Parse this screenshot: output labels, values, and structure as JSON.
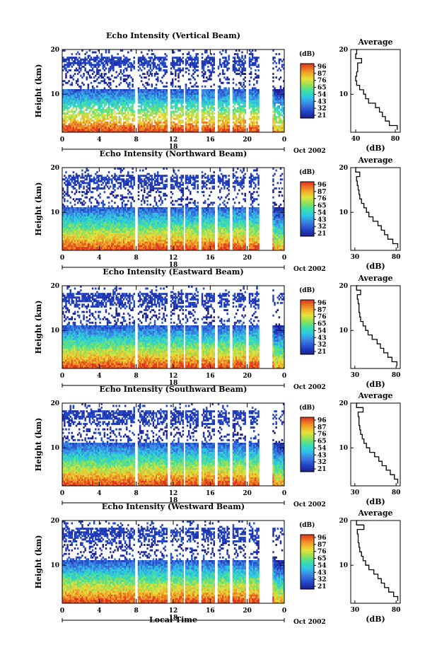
{
  "common": {
    "y_axis_label": "Height (km)",
    "x_axis_label": "Local Time",
    "date_label": "Oct 2002",
    "day_label": "18",
    "cbar_unit": "(dB)",
    "avg_title": "Average",
    "avg_xlabel": "(dB)",
    "height_ticks": [
      "20",
      "10"
    ],
    "time_ticks": [
      "0",
      "4",
      "8",
      "12",
      "16",
      "20",
      "0"
    ],
    "cbar_ticks": [
      "96",
      "87",
      "76",
      "65",
      "54",
      "43",
      "32",
      "21"
    ]
  },
  "chart_data": [
    {
      "type": "heatmap",
      "title": "Echo Intensity (Vertical Beam)",
      "xlabel": "Local Time",
      "ylabel": "Height (km)",
      "xlim": [
        0,
        24
      ],
      "ylim": [
        1.5,
        20
      ],
      "colorbar": {
        "label": "(dB)",
        "range": [
          21,
          96
        ],
        "ticks": [
          96,
          87,
          76,
          65,
          54,
          43,
          32,
          21
        ]
      },
      "average_profile": {
        "title": "Average",
        "xlabel": "(dB)",
        "xlim": [
          35,
          85
        ],
        "xticks": [
          40,
          80
        ],
        "height_km": [
          2,
          3,
          4,
          5,
          6,
          7,
          8,
          9,
          10,
          11,
          12,
          13,
          14,
          15,
          16,
          17,
          18,
          19,
          20
        ],
        "db": [
          82,
          74,
          70,
          67,
          64,
          60,
          53,
          50,
          48,
          44,
          41,
          40,
          41,
          42,
          42,
          46,
          40,
          41,
          42
        ]
      }
    },
    {
      "type": "heatmap",
      "title": "Echo Intensity (Northward Beam)",
      "xlabel": "Local Time",
      "ylabel": "Height (km)",
      "xlim": [
        0,
        24
      ],
      "ylim": [
        1.5,
        20
      ],
      "colorbar": {
        "label": "(dB)",
        "range": [
          21,
          96
        ],
        "ticks": [
          96,
          87,
          76,
          65,
          54,
          43,
          32,
          21
        ]
      },
      "average_profile": {
        "title": "Average",
        "xlabel": "(dB)",
        "xlim": [
          25,
          85
        ],
        "xticks": [
          30,
          80
        ],
        "height_km": [
          2,
          3,
          4,
          5,
          6,
          7,
          8,
          9,
          10,
          11,
          12,
          13,
          14,
          15,
          16,
          17,
          18,
          19,
          20
        ],
        "db": [
          82,
          76,
          70,
          66,
          62,
          58,
          52,
          47,
          44,
          41,
          38,
          36,
          35,
          34,
          33,
          32,
          36,
          31,
          33
        ]
      }
    },
    {
      "type": "heatmap",
      "title": "Echo Intensity (Eastward Beam)",
      "xlabel": "Local Time",
      "ylabel": "Height (km)",
      "xlim": [
        0,
        24
      ],
      "ylim": [
        1.5,
        20
      ],
      "colorbar": {
        "label": "(dB)",
        "range": [
          21,
          96
        ],
        "ticks": [
          96,
          87,
          76,
          65,
          54,
          43,
          32,
          21
        ]
      },
      "average_profile": {
        "title": "Average",
        "xlabel": "(dB)",
        "xlim": [
          25,
          85
        ],
        "xticks": [
          30,
          80
        ],
        "height_km": [
          2,
          3,
          4,
          5,
          6,
          7,
          8,
          9,
          10,
          11,
          12,
          13,
          14,
          15,
          16,
          17,
          18,
          19,
          20
        ],
        "db": [
          81,
          75,
          70,
          65,
          61,
          57,
          51,
          46,
          43,
          40,
          37,
          36,
          35,
          35,
          34,
          33,
          37,
          32,
          34
        ]
      }
    },
    {
      "type": "heatmap",
      "title": "Echo Intensity (Southward Beam)",
      "xlabel": "Local Time",
      "ylabel": "Height (km)",
      "xlim": [
        0,
        24
      ],
      "ylim": [
        1.5,
        20
      ],
      "colorbar": {
        "label": "(dB)",
        "range": [
          21,
          96
        ],
        "ticks": [
          96,
          87,
          76,
          65,
          54,
          43,
          32,
          21
        ]
      },
      "average_profile": {
        "title": "Average",
        "xlabel": "(dB)",
        "xlim": [
          25,
          85
        ],
        "xticks": [
          30,
          80
        ],
        "height_km": [
          2,
          3,
          4,
          5,
          6,
          7,
          8,
          9,
          10,
          11,
          12,
          13,
          14,
          15,
          16,
          17,
          18,
          19,
          20
        ],
        "db": [
          82,
          78,
          73,
          68,
          63,
          59,
          54,
          48,
          44,
          41,
          39,
          37,
          36,
          35,
          35,
          34,
          40,
          32,
          35
        ]
      }
    },
    {
      "type": "heatmap",
      "title": "Echo Intensity (Westward Beam)",
      "xlabel": "Local Time",
      "ylabel": "Height (km)",
      "xlim": [
        0,
        24
      ],
      "ylim": [
        1.5,
        20
      ],
      "colorbar": {
        "label": "(dB)",
        "range": [
          21,
          96
        ],
        "ticks": [
          96,
          87,
          76,
          65,
          54,
          43,
          32,
          21
        ]
      },
      "average_profile": {
        "title": "Average",
        "xlabel": "(dB)",
        "xlim": [
          25,
          85
        ],
        "xticks": [
          30,
          80
        ],
        "height_km": [
          2,
          3,
          4,
          5,
          6,
          7,
          8,
          9,
          10,
          11,
          12,
          13,
          14,
          15,
          16,
          17,
          18,
          19,
          20
        ],
        "db": [
          82,
          77,
          71,
          66,
          62,
          58,
          53,
          47,
          43,
          40,
          38,
          36,
          35,
          34,
          34,
          33,
          41,
          32,
          34
        ]
      }
    }
  ]
}
